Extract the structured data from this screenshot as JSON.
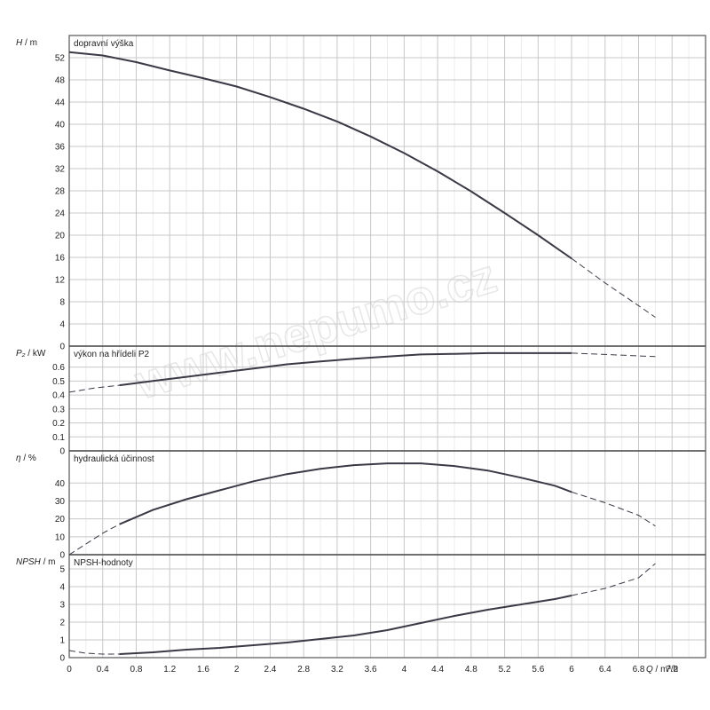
{
  "watermark": "www.nepumo.cz",
  "chart_data": {
    "type": "line",
    "x_axis": {
      "label_symbol": "Q",
      "label_unit": " / m³/h",
      "range": [
        0,
        7.6
      ],
      "ticks": [
        "0",
        "0.4",
        "0.8",
        "1.2",
        "1.6",
        "2",
        "2.4",
        "2.8",
        "3.2",
        "3.6",
        "4",
        "4.4",
        "4.8",
        "5.2",
        "5.6",
        "6",
        "6.4",
        "6.8",
        "7.2"
      ]
    },
    "grid": true,
    "panels": [
      {
        "id": "head",
        "axis_symbol": "H",
        "axis_unit": " / m",
        "title": "dopravní  výška",
        "ylim": [
          0,
          56
        ],
        "yticks": [
          "0",
          "4",
          "8",
          "12",
          "16",
          "20",
          "24",
          "28",
          "32",
          "36",
          "40",
          "44",
          "48",
          "52"
        ],
        "series": [
          {
            "style": "solid",
            "x": [
              0,
              0.4,
              0.8,
              1.2,
              1.6,
              2,
              2.4,
              2.8,
              3.2,
              3.6,
              4,
              4.4,
              4.8,
              5.2,
              5.6,
              6
            ],
            "y": [
              53,
              52.4,
              51.2,
              49.7,
              48.3,
              46.8,
              44.9,
              42.8,
              40.5,
              37.8,
              34.8,
              31.5,
              27.9,
              24,
              20,
              15.8
            ]
          },
          {
            "style": "dashed",
            "x": [
              6,
              6.4,
              6.8,
              7
            ],
            "y": [
              15.8,
              11.4,
              7.3,
              5.2
            ]
          }
        ]
      },
      {
        "id": "power",
        "axis_symbol": "P₂",
        "axis_unit": " / kW",
        "title": "výkon na hřídeli P2",
        "ylim": [
          0,
          0.75
        ],
        "yticks": [
          "0",
          "0.1",
          "0.2",
          "0.3",
          "0.4",
          "0.5",
          "0.6"
        ],
        "series": [
          {
            "style": "dashed",
            "x": [
              0,
              0.3,
              0.6
            ],
            "y": [
              0.42,
              0.45,
              0.47
            ]
          },
          {
            "style": "solid",
            "x": [
              0.6,
              1,
              1.4,
              1.8,
              2.2,
              2.6,
              3,
              3.4,
              3.8,
              4.2,
              4.6,
              5,
              5.4,
              5.8,
              6
            ],
            "y": [
              0.47,
              0.5,
              0.53,
              0.56,
              0.59,
              0.62,
              0.64,
              0.66,
              0.675,
              0.69,
              0.695,
              0.7,
              0.7,
              0.7,
              0.7
            ]
          },
          {
            "style": "dashed",
            "x": [
              6,
              6.4,
              6.8,
              7
            ],
            "y": [
              0.7,
              0.69,
              0.68,
              0.675
            ]
          }
        ]
      },
      {
        "id": "efficiency",
        "axis_symbol": "η",
        "axis_unit": " / %",
        "title": "hydraulická účinnost",
        "ylim": [
          0,
          58
        ],
        "yticks": [
          "0",
          "10",
          "20",
          "30",
          "40"
        ],
        "series": [
          {
            "style": "dashed",
            "x": [
              0,
              0.2,
              0.4,
              0.6
            ],
            "y": [
              0,
              6,
              12,
              17
            ]
          },
          {
            "style": "solid",
            "x": [
              0.6,
              1,
              1.4,
              1.8,
              2.2,
              2.6,
              3,
              3.4,
              3.8,
              4.2,
              4.6,
              5,
              5.4,
              5.8,
              6
            ],
            "y": [
              17,
              25,
              31,
              36,
              41,
              45,
              48,
              50,
              51,
              51,
              49.5,
              47,
              43,
              38.5,
              35
            ]
          },
          {
            "style": "dashed",
            "x": [
              6,
              6.4,
              6.8,
              7
            ],
            "y": [
              35,
              29,
              22,
              16
            ]
          }
        ]
      },
      {
        "id": "npsh",
        "axis_symbol": "NPSH",
        "axis_unit": " / m",
        "title": "NPSH-hodnoty",
        "ylim": [
          0,
          5.8
        ],
        "yticks": [
          "0",
          "1",
          "2",
          "3",
          "4",
          "5"
        ],
        "series": [
          {
            "style": "dashed",
            "x": [
              0,
              0.2,
              0.4,
              0.6
            ],
            "y": [
              0.4,
              0.25,
              0.2,
              0.2
            ]
          },
          {
            "style": "solid",
            "x": [
              0.6,
              1,
              1.4,
              1.8,
              2.2,
              2.6,
              3,
              3.4,
              3.8,
              4.2,
              4.6,
              5,
              5.4,
              5.8,
              6
            ],
            "y": [
              0.2,
              0.3,
              0.45,
              0.55,
              0.7,
              0.85,
              1.05,
              1.25,
              1.55,
              1.95,
              2.35,
              2.7,
              3,
              3.3,
              3.5
            ]
          },
          {
            "style": "dashed",
            "x": [
              6,
              6.4,
              6.8,
              7
            ],
            "y": [
              3.5,
              3.9,
              4.5,
              5.3
            ]
          }
        ]
      }
    ]
  }
}
